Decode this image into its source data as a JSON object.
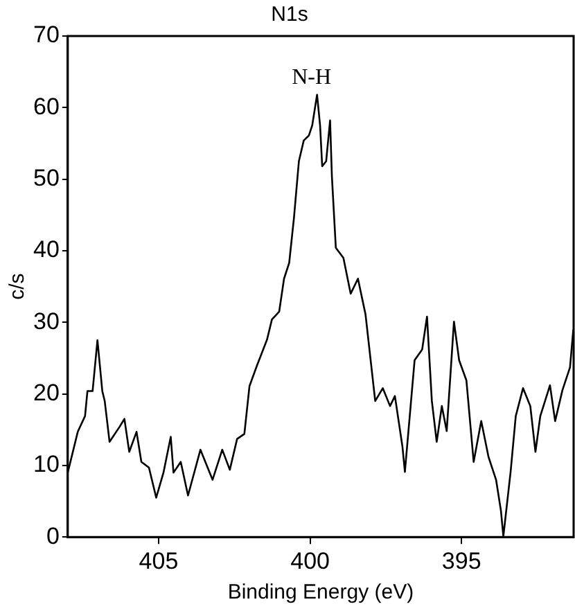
{
  "chart_data": {
    "type": "line",
    "title": "N1s",
    "xlabel": "Binding Energy (eV)",
    "ylabel": "c/s",
    "x": [
      408.0,
      407.67,
      407.43,
      407.35,
      407.18,
      407.02,
      406.86,
      406.78,
      406.62,
      406.29,
      406.13,
      405.97,
      405.73,
      405.57,
      405.32,
      405.08,
      404.84,
      404.6,
      404.51,
      404.27,
      404.03,
      403.62,
      403.22,
      402.9,
      402.65,
      402.41,
      402.17,
      402.0,
      401.75,
      401.42,
      401.26,
      401.02,
      400.86,
      400.69,
      400.53,
      400.37,
      400.21,
      400.04,
      399.93,
      399.77,
      399.67,
      399.6,
      399.47,
      399.34,
      399.28,
      399.15,
      398.9,
      398.66,
      398.42,
      398.17,
      397.85,
      397.6,
      397.36,
      397.2,
      396.95,
      396.87,
      396.55,
      396.3,
      396.14,
      395.98,
      395.82,
      395.65,
      395.49,
      395.25,
      395.08,
      394.84,
      394.6,
      394.35,
      394.11,
      393.86,
      393.7,
      393.62,
      393.38,
      393.21,
      392.97,
      392.73,
      392.56,
      392.4,
      392.08,
      391.91,
      391.67,
      391.42,
      391.31
    ],
    "series": [
      {
        "color": "#000000",
        "values": [
          9,
          14.7,
          16.9,
          20.4,
          20.4,
          27.5,
          20.4,
          19,
          13.3,
          15.4,
          16.5,
          11.9,
          14.7,
          10.5,
          9.7,
          5.5,
          9,
          14,
          9,
          10.5,
          5.8,
          12.2,
          8,
          12.2,
          9.4,
          13.7,
          14.4,
          21.1,
          24,
          27.6,
          30.4,
          31.5,
          36.1,
          38.3,
          44.7,
          52.5,
          55.4,
          56.1,
          57.5,
          61.8,
          57.5,
          51.8,
          52.5,
          58.2,
          50.4,
          40.4,
          39,
          34,
          36.1,
          31.1,
          19,
          20.8,
          18.3,
          19.7,
          12.6,
          9.1,
          24.7,
          26.2,
          30.8,
          19,
          13.3,
          18.3,
          14.8,
          30.1,
          24.7,
          21.9,
          10.5,
          16.2,
          11.2,
          8,
          3.7,
          0.1,
          9.1,
          16.9,
          20.8,
          18.3,
          11.9,
          16.9,
          21.2,
          16.2,
          20.5,
          23.7,
          29
        ]
      }
    ],
    "xlim": [
      408,
      391.3
    ],
    "xticks": [
      405,
      400,
      395
    ],
    "ylim": [
      0,
      70
    ],
    "yticks": [
      0,
      10,
      20,
      30,
      40,
      50,
      60,
      70
    ],
    "grid": false,
    "legend": false,
    "marker": "none",
    "line_style": "solid",
    "annotations": [
      "N-H"
    ]
  }
}
